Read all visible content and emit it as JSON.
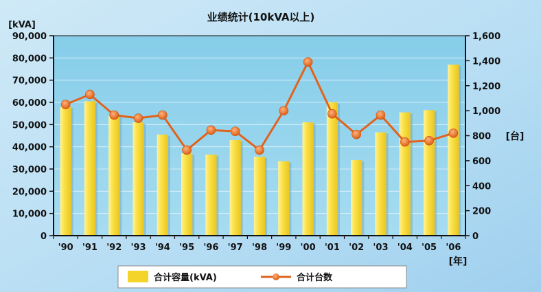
{
  "chart_data": {
    "type": "bar+line",
    "title": "业绩统计(10kVA以上)",
    "categories": [
      "'90",
      "'91",
      "'92",
      "'93",
      "'94",
      "'95",
      "'96",
      "'97",
      "'98",
      "'99",
      "'00",
      "'01",
      "'02",
      "'03",
      "'04",
      "'05",
      "'06"
    ],
    "x_unit": "[年]",
    "y_left": {
      "unit": "[kVA]",
      "ylim": [
        0,
        90000
      ],
      "ticks": [
        "0",
        "10,000",
        "20,000",
        "30,000",
        "40,000",
        "50,000",
        "60,000",
        "70,000",
        "80,000",
        "90,000"
      ],
      "tick_values": [
        0,
        10000,
        20000,
        30000,
        40000,
        50000,
        60000,
        70000,
        80000,
        90000
      ]
    },
    "y_right": {
      "unit": "[台]",
      "ylim": [
        0,
        1600
      ],
      "ticks": [
        "0",
        "200",
        "400",
        "600",
        "800",
        "1,000",
        "1,200",
        "1,400",
        "1,600"
      ],
      "tick_values": [
        0,
        200,
        400,
        600,
        800,
        1000,
        1200,
        1400,
        1600
      ]
    },
    "series": [
      {
        "name": "合计容量(kVA)",
        "type": "bar",
        "axis": "left",
        "values": [
          58000,
          60500,
          54000,
          51000,
          45500,
          37000,
          36500,
          43000,
          35500,
          33500,
          51000,
          60000,
          34000,
          46500,
          55500,
          56500,
          77000
        ]
      },
      {
        "name": "合计台数",
        "type": "line",
        "axis": "right",
        "values": [
          1050,
          1130,
          965,
          940,
          965,
          685,
          845,
          835,
          685,
          1000,
          1390,
          975,
          810,
          965,
          750,
          760,
          820
        ]
      }
    ],
    "grid": true,
    "legend": "bottom-center",
    "colors": {
      "bar": "#F4D32A",
      "line": "#E0631C",
      "plot_bg": "#8FD2EC"
    }
  }
}
